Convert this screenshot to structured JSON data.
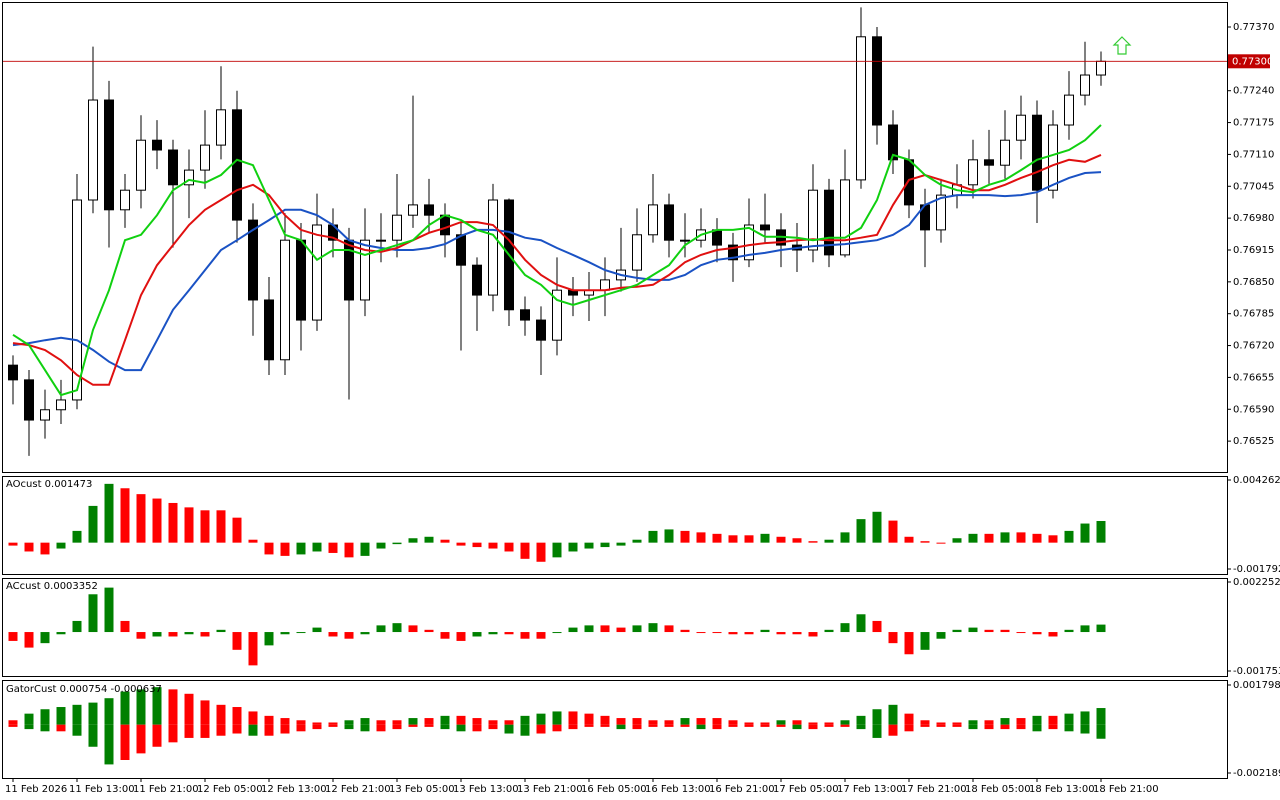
{
  "chart_data": [
    {
      "type": "candlestick",
      "open": [
        0.7668,
        0.7665,
        0.76568,
        0.76589,
        0.76609,
        0.77017,
        0.77221,
        0.76997,
        0.77037,
        0.77139,
        0.77119,
        0.77048,
        0.77078,
        0.77129,
        0.77201,
        0.76976,
        0.76813,
        0.76691,
        0.76935,
        0.76772,
        0.76966,
        0.76935,
        0.76813,
        0.76935,
        0.76935,
        0.76986,
        0.77007,
        0.76986,
        0.76946,
        0.76884,
        0.76823,
        0.77017,
        0.76793,
        0.76772,
        0.76731,
        0.76833,
        0.76823,
        0.76833,
        0.76854,
        0.76874,
        0.76946,
        0.77007,
        0.76935,
        0.76935,
        0.76956,
        0.76925,
        0.76895,
        0.76966,
        0.76956,
        0.76925,
        0.76915,
        0.77037,
        0.76905,
        0.77058,
        0.7735,
        0.7717,
        0.77099,
        0.77007,
        0.76956,
        0.77027,
        0.77048,
        0.77099,
        0.77088,
        0.77139,
        0.7719,
        0.77037,
        0.7717,
        0.77231,
        0.77272
      ],
      "high": [
        0.767,
        0.7667,
        0.7663,
        0.7665,
        0.7707,
        0.7733,
        0.7726,
        0.7707,
        0.7719,
        0.7718,
        0.7714,
        0.7712,
        0.772,
        0.7729,
        0.7724,
        0.7701,
        0.7686,
        0.7699,
        0.7697,
        0.7703,
        0.77,
        0.7696,
        0.77,
        0.7699,
        0.7707,
        0.7723,
        0.7706,
        0.7701,
        0.7697,
        0.769,
        0.7705,
        0.7702,
        0.7682,
        0.768,
        0.769,
        0.7686,
        0.7687,
        0.769,
        0.7696,
        0.77,
        0.7707,
        0.7703,
        0.7699,
        0.77,
        0.7698,
        0.7695,
        0.7702,
        0.7703,
        0.7699,
        0.7697,
        0.7709,
        0.7706,
        0.7712,
        0.7741,
        0.7737,
        0.772,
        0.7712,
        0.7704,
        0.7706,
        0.7709,
        0.7714,
        0.7716,
        0.772,
        0.7723,
        0.7722,
        0.772,
        0.7728,
        0.7734,
        0.7732
      ],
      "low": [
        0.766,
        0.76495,
        0.7653,
        0.7656,
        0.7659,
        0.7699,
        0.7692,
        0.7696,
        0.77,
        0.7708,
        0.7692,
        0.7698,
        0.7704,
        0.771,
        0.7693,
        0.7674,
        0.7666,
        0.7666,
        0.7671,
        0.7675,
        0.769,
        0.7661,
        0.7678,
        0.7689,
        0.769,
        0.7696,
        0.7695,
        0.769,
        0.7671,
        0.7675,
        0.7679,
        0.7676,
        0.7674,
        0.7666,
        0.767,
        0.7678,
        0.7677,
        0.7678,
        0.7683,
        0.7685,
        0.7693,
        0.769,
        0.769,
        0.7692,
        0.7689,
        0.7685,
        0.7688,
        0.7693,
        0.7688,
        0.7687,
        0.7689,
        0.7688,
        0.769,
        0.7704,
        0.7713,
        0.7707,
        0.7698,
        0.7688,
        0.7693,
        0.77,
        0.7702,
        0.7705,
        0.7706,
        0.771,
        0.7697,
        0.7702,
        0.7714,
        0.7721,
        0.7725
      ],
      "close": [
        0.7665,
        0.76568,
        0.76589,
        0.76609,
        0.77017,
        0.77221,
        0.76997,
        0.77037,
        0.77139,
        0.77119,
        0.77048,
        0.77078,
        0.77129,
        0.77201,
        0.76976,
        0.76813,
        0.76691,
        0.76935,
        0.76772,
        0.76966,
        0.76935,
        0.76813,
        0.76935,
        0.76935,
        0.76986,
        0.77007,
        0.76986,
        0.76946,
        0.76884,
        0.76823,
        0.77017,
        0.76793,
        0.76772,
        0.76731,
        0.76833,
        0.76823,
        0.76833,
        0.76854,
        0.76874,
        0.76946,
        0.77007,
        0.76935,
        0.76935,
        0.76956,
        0.76925,
        0.76895,
        0.76966,
        0.76956,
        0.76925,
        0.76915,
        0.77037,
        0.76905,
        0.77058,
        0.7735,
        0.7717,
        0.77099,
        0.77007,
        0.76956,
        0.77027,
        0.77048,
        0.77099,
        0.77088,
        0.77139,
        0.7719,
        0.77037,
        0.7717,
        0.77231,
        0.77272,
        0.773
      ],
      "up_color": "#ffffff",
      "down_color": "#000000",
      "lines": [
        {
          "color": "#1a52c4",
          "values": [
            0.76721,
            0.76725,
            0.76731,
            0.76736,
            0.76731,
            0.76711,
            0.76687,
            0.7667,
            0.7667,
            0.76731,
            0.76793,
            0.76833,
            0.76874,
            0.76915,
            0.76935,
            0.76956,
            0.76976,
            0.76997,
            0.76997,
            0.76986,
            0.76966,
            0.76935,
            0.76925,
            0.76919,
            0.76915,
            0.76915,
            0.76919,
            0.76927,
            0.76944,
            0.76956,
            0.76956,
            0.76952,
            0.7694,
            0.76935,
            0.76919,
            0.76905,
            0.7689,
            0.76874,
            0.76864,
            0.76858,
            0.76854,
            0.76854,
            0.76864,
            0.76884,
            0.76895,
            0.76899,
            0.76905,
            0.76909,
            0.76915,
            0.76919,
            0.76923,
            0.76925,
            0.76927,
            0.76931,
            0.76935,
            0.76946,
            0.76966,
            0.77007,
            0.77021,
            0.77027,
            0.77027,
            0.77027,
            0.77025,
            0.77027,
            0.77033,
            0.77048,
            0.77062,
            0.77072,
            0.77074
          ]
        },
        {
          "color": "#e01010",
          "values": [
            0.76725,
            0.76721,
            0.76711,
            0.7669,
            0.7666,
            0.7664,
            0.7664,
            0.76731,
            0.76823,
            0.76884,
            0.76925,
            0.76966,
            0.76997,
            0.77017,
            0.77037,
            0.77048,
            0.77027,
            0.76986,
            0.76956,
            0.76946,
            0.7694,
            0.76925,
            0.76915,
            0.76911,
            0.76919,
            0.76935,
            0.7695,
            0.7696,
            0.76972,
            0.76972,
            0.76966,
            0.76935,
            0.76895,
            0.76864,
            0.76844,
            0.76833,
            0.76833,
            0.76833,
            0.76838,
            0.7684,
            0.76844,
            0.76864,
            0.7689,
            0.76905,
            0.76915,
            0.76919,
            0.76925,
            0.76929,
            0.76931,
            0.76935,
            0.76937,
            0.76935,
            0.76935,
            0.7694,
            0.76946,
            0.77007,
            0.77058,
            0.77068,
            0.77058,
            0.77048,
            0.77037,
            0.77037,
            0.77048,
            0.77062,
            0.77074,
            0.77088,
            0.77099,
            0.77095,
            0.77109
          ]
        },
        {
          "color": "#10d010",
          "values": [
            0.76742,
            0.76721,
            0.7667,
            0.76619,
            0.76629,
            0.76752,
            0.76833,
            0.76935,
            0.76946,
            0.76986,
            0.77037,
            0.77058,
            0.77052,
            0.77068,
            0.77099,
            0.77088,
            0.77017,
            0.76946,
            0.76935,
            0.76895,
            0.76915,
            0.76915,
            0.76905,
            0.76915,
            0.76925,
            0.76935,
            0.76966,
            0.76986,
            0.76976,
            0.76956,
            0.76946,
            0.76905,
            0.76864,
            0.76844,
            0.76813,
            0.76803,
            0.76813,
            0.76823,
            0.76833,
            0.76844,
            0.76864,
            0.76884,
            0.76925,
            0.76946,
            0.76956,
            0.76956,
            0.7696,
            0.76942,
            0.76942,
            0.7694,
            0.76935,
            0.7694,
            0.7694,
            0.7696,
            0.77017,
            0.77109,
            0.77099,
            0.77068,
            0.77048,
            0.77037,
            0.77033,
            0.77048,
            0.77058,
            0.77078,
            0.77099,
            0.77109,
            0.77119,
            0.77139,
            0.7717
          ]
        }
      ],
      "current_price": {
        "value": 0.773,
        "label": "0.77300"
      },
      "ylim": [
        0.76462,
        0.77421
      ],
      "yticks": [
        {
          "value": 0.76525,
          "label": "0.76525"
        },
        {
          "value": 0.7659,
          "label": "0.76590"
        },
        {
          "value": 0.76655,
          "label": "0.76655"
        },
        {
          "value": 0.7672,
          "label": "0.76720"
        },
        {
          "value": 0.76785,
          "label": "0.76785"
        },
        {
          "value": 0.7685,
          "label": "0.76850"
        },
        {
          "value": 0.76915,
          "label": "0.76915"
        },
        {
          "value": 0.7698,
          "label": "0.76980"
        },
        {
          "value": 0.77045,
          "label": "0.77045"
        },
        {
          "value": 0.7711,
          "label": "0.77110"
        },
        {
          "value": 0.77175,
          "label": "0.77175"
        },
        {
          "value": 0.7724,
          "label": "0.77240"
        },
        {
          "value": 0.7737,
          "label": "0.77370"
        }
      ],
      "xticks": [
        {
          "value": 0,
          "label": "11 Feb 2026"
        },
        {
          "value": 4,
          "label": "11 Feb 13:00"
        },
        {
          "value": 8,
          "label": "11 Feb 21:00"
        },
        {
          "value": 12,
          "label": "12 Feb 05:00"
        },
        {
          "value": 16,
          "label": "12 Feb 13:00"
        },
        {
          "value": 20,
          "label": "12 Feb 21:00"
        },
        {
          "value": 24,
          "label": "13 Feb 05:00"
        },
        {
          "value": 28,
          "label": "13 Feb 13:00"
        },
        {
          "value": 32,
          "label": "13 Feb 21:00"
        },
        {
          "value": 36,
          "label": "16 Feb 05:00"
        },
        {
          "value": 40,
          "label": "16 Feb 13:00"
        },
        {
          "value": 44,
          "label": "16 Feb 21:00"
        },
        {
          "value": 48,
          "label": "17 Feb 05:00"
        },
        {
          "value": 52,
          "label": "17 Feb 13:00"
        },
        {
          "value": 56,
          "label": "17 Feb 21:00"
        },
        {
          "value": 60,
          "label": "18 Feb 05:00"
        },
        {
          "value": 64,
          "label": "18 Feb 13:00"
        },
        {
          "value": 68,
          "label": "18 Feb 21:00"
        }
      ]
    },
    {
      "type": "histogram",
      "title": "AOcust 0.001473",
      "up_color": "#008000",
      "down_color": "#ff0000",
      "values": [
        -0.0002,
        -0.0006,
        -0.0008,
        -0.0004,
        0.0008,
        0.0025,
        0.004,
        0.0037,
        0.0033,
        0.003,
        0.0027,
        0.0024,
        0.0022,
        0.0022,
        0.0017,
        0.0002,
        -0.0008,
        -0.0009,
        -0.0008,
        -0.0006,
        -0.0007,
        -0.001,
        -0.0009,
        -0.0004,
        -0.0001,
        0.0003,
        0.0004,
        0.0002,
        -0.0002,
        -0.0003,
        -0.0004,
        -0.0006,
        -0.0011,
        -0.0013,
        -0.001,
        -0.0006,
        -0.0004,
        -0.0003,
        -0.0002,
        0.0002,
        0.0008,
        0.0009,
        0.0008,
        0.0007,
        0.0006,
        0.0005,
        0.0005,
        0.0006,
        0.0004,
        0.0003,
        0.0001,
        0.0002,
        0.0007,
        0.0016,
        0.0021,
        0.0015,
        0.0004,
        0.0001,
        0,
        0.0003,
        0.0006,
        0.0006,
        0.0007,
        0.0007,
        0.0006,
        0.0005,
        0.0008,
        0.0013,
        0.001473
      ],
      "ylim": [
        -0.001792,
        0.004262
      ],
      "yticks": [
        -0.001792,
        0.004262
      ]
    },
    {
      "type": "histogram",
      "title": "ACcust 0.0003352",
      "up_color": "#008000",
      "down_color": "#ff0000",
      "values": [
        -0.0004,
        -0.0007,
        -0.0005,
        -0.0001,
        0.0005,
        0.0017,
        0.002,
        0.0005,
        -0.0003,
        -0.0002,
        -0.0002,
        -0.0001,
        -0.0002,
        0.0001,
        -0.0008,
        -0.0015,
        -0.0006,
        -0.0001,
        0,
        0.0002,
        -0.0002,
        -0.0003,
        -0.0001,
        0.0003,
        0.0004,
        0.0003,
        0.0001,
        -0.0003,
        -0.0004,
        -0.0002,
        -0.0001,
        -0.0001,
        -0.0003,
        -0.0003,
        0,
        0.0002,
        0.0003,
        0.0003,
        0.0002,
        0.0003,
        0.0004,
        0.0003,
        0.0001,
        0,
        0,
        -0.0001,
        -0.0001,
        0.0001,
        -0.0001,
        -0.0001,
        -0.0002,
        0.0001,
        0.0004,
        0.0008,
        0.0005,
        -0.0005,
        -0.001,
        -0.0008,
        -0.0003,
        0.0001,
        0.0002,
        0.0001,
        0.0001,
        0,
        -0.0001,
        -0.0002,
        0.0001,
        0.0003,
        0.0003352
      ],
      "ylim": [
        -0.0017536,
        0.0022528
      ],
      "yticks": [
        -0.0017536,
        0.0022528
      ]
    },
    {
      "type": "gator",
      "title": "GatorCust 0.000754 -0.000637",
      "up_color": "#008000",
      "down_color": "#ff0000",
      "upper": [
        0.0002,
        0.0005,
        0.0007,
        0.0008,
        0.0009,
        0.001,
        0.0012,
        0.0015,
        0.0016,
        0.0017,
        0.0016,
        0.0014,
        0.0011,
        0.0009,
        0.0008,
        0.0006,
        0.0004,
        0.0003,
        0.0002,
        0.0001,
        0.0001,
        0.0002,
        0.0003,
        0.0002,
        0.0002,
        0.0003,
        0.0003,
        0.0004,
        0.0004,
        0.0003,
        0.0002,
        0.0002,
        0.0004,
        0.0005,
        0.0006,
        0.0006,
        0.0005,
        0.0004,
        0.0003,
        0.0003,
        0.0002,
        0.0002,
        0.0003,
        0.0003,
        0.0003,
        0.0002,
        0.0001,
        0.0001,
        0.0002,
        0.0002,
        0.0001,
        0.0001,
        0.0002,
        0.0004,
        0.0007,
        0.0009,
        0.0005,
        0.0002,
        0.0001,
        0.0001,
        0.0002,
        0.0002,
        0.0003,
        0.0003,
        0.0004,
        0.0004,
        0.0005,
        0.0006,
        0.000754
      ],
      "lower": [
        -0.0001,
        -0.0002,
        -0.0003,
        -0.0003,
        -0.0005,
        -0.001,
        -0.0018,
        -0.0016,
        -0.0013,
        -0.001,
        -0.0008,
        -0.0006,
        -0.0006,
        -0.0005,
        -0.0004,
        -0.0005,
        -0.0005,
        -0.0004,
        -0.0003,
        -0.0002,
        -0.0001,
        -0.0002,
        -0.0003,
        -0.0003,
        -0.0002,
        -0.0001,
        -0.0001,
        -0.0002,
        -0.0003,
        -0.0003,
        -0.0002,
        -0.0004,
        -0.0005,
        -0.0004,
        -0.0003,
        -0.0002,
        -0.0001,
        -0.0001,
        -0.0002,
        -0.0002,
        -0.0001,
        -0.0001,
        -0.0001,
        -0.0002,
        -0.0002,
        -0.0001,
        -0.0001,
        -0.0001,
        -0.0001,
        -0.0002,
        -0.0002,
        -0.0001,
        -0.0001,
        -0.0002,
        -0.0006,
        -0.0005,
        -0.0003,
        -0.0001,
        -0.0001,
        -0.0001,
        -0.0002,
        -0.0002,
        -0.0002,
        -0.0002,
        -0.0003,
        -0.0002,
        -0.0003,
        -0.0004,
        -0.000637
      ],
      "ylim": [
        -0.002189,
        0.001798
      ],
      "yticks": [
        -0.002189,
        0.001798
      ]
    }
  ]
}
